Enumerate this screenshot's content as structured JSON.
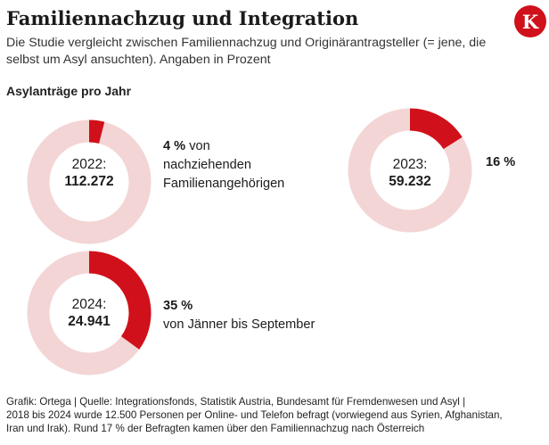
{
  "title": "Familiennachzug und Integration",
  "subtitle": "Die Studie vergleicht zwischen Familiennachzug und Originärantragsteller (= jene, die selbst um Asyl ansuchten). Angaben in Prozent",
  "logo_letter": "K",
  "section_label": "Asylanträge pro Jahr",
  "colors": {
    "accent": "#d0101a",
    "ring": "#f3d5d5",
    "logo": "#d0101a"
  },
  "chart_data": [
    {
      "type": "pie",
      "year_label": "2022:",
      "applications": "112.272",
      "share_percent": 4,
      "share_label": "4 %",
      "note": [
        "von",
        "nachziehenden",
        "Familienangehörigen"
      ]
    },
    {
      "type": "pie",
      "year_label": "2023:",
      "applications": "59.232",
      "share_percent": 16,
      "share_label": "16 %",
      "note": []
    },
    {
      "type": "pie",
      "year_label": "2024:",
      "applications": "24.941",
      "share_percent": 35,
      "share_label": "35 %",
      "note": [
        "von Jänner bis September"
      ]
    }
  ],
  "footer": {
    "line1": "Grafik: Ortega | Quelle: Integrationsfonds, Statistik Austria, Bundesamt für Fremdenwesen und Asyl |",
    "line2": "2018 bis 2024 wurde 12.500 Personen per Online- und Telefon befragt (vorwiegend aus Syrien, Afghanistan,",
    "line3": "Iran und Irak). Rund 17 % der Befragten kamen über den Familiennachzug nach Österreich"
  }
}
